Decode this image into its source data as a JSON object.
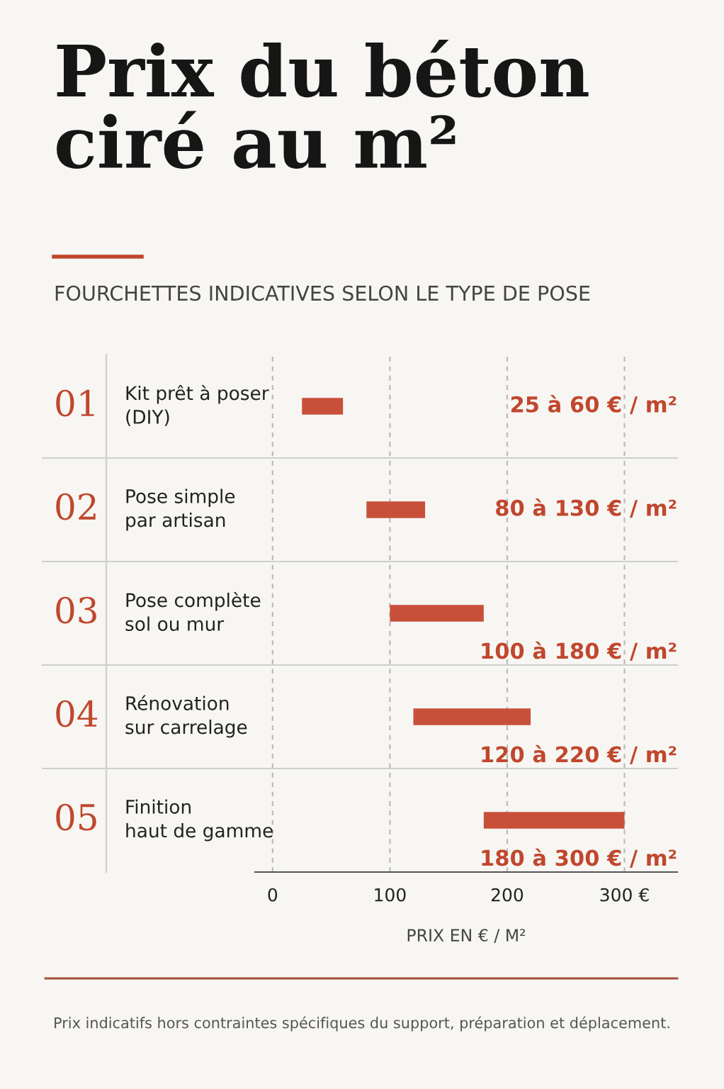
{
  "chart_data": {
    "type": "bar",
    "orientation": "horizontal",
    "title": "Prix du béton ciré au m²",
    "subtitle": "FOURCHETTES INDICATIVES SELON LE TYPE DE POSE",
    "xlabel": "PRIX EN € / M²",
    "categories": [
      "Kit prêt à poser\n(DIY)",
      "Pose simple\npar artisan",
      "Pose complète\nsol ou mur",
      "Rénovation\nsur carrelage",
      "Finition\nhaut de gamme"
    ],
    "base": [
      25,
      80,
      100,
      120,
      180
    ],
    "values": [
      35,
      50,
      80,
      100,
      120
    ],
    "color": "#c8503a",
    "xlim": [
      -15,
      345
    ],
    "xticks": [
      0,
      100,
      200,
      {
        "value": 300,
        "label": "300 €"
      }
    ],
    "grid": "x",
    "annotations": [
      "01",
      "02",
      "03",
      "04",
      "05",
      "25 à 60 € / m²",
      "80 à 130 € / m²",
      "100 à 180 € / m²",
      "120 à 220 € / m²",
      "180 à 300 € / m²",
      "Prix indicatifs hors contraintes spécifiques du support, préparation et déplacement."
    ]
  }
}
